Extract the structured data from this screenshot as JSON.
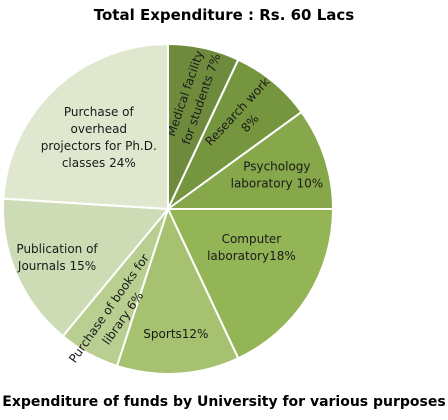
{
  "chart_data": {
    "type": "pie",
    "title": "Total Expenditure : Rs. 60 Lacs",
    "caption": "Expenditure of funds by University for various purposes",
    "slices": [
      {
        "label": "Medical facility for students 7%",
        "value": 7,
        "color": "#6e8b3d"
      },
      {
        "label": "Research work 8%",
        "value": 8,
        "color": "#76953f"
      },
      {
        "label": "Psychology laboratory 10%",
        "value": 10,
        "color": "#86a74a"
      },
      {
        "label": "Computer laboratory18%",
        "value": 18,
        "color": "#94b556"
      },
      {
        "label": "Sports12%",
        "value": 12,
        "color": "#a6c271"
      },
      {
        "label": "Purchase of books for library 6%",
        "value": 6,
        "color": "#b8cf91"
      },
      {
        "label": "Publication of Journals 15%",
        "value": 15,
        "color": "#cddcb4"
      },
      {
        "label": "Purchase of overhead projectors for Ph.D. classes 24%",
        "value": 24,
        "color": "#dfe8cf"
      }
    ]
  }
}
